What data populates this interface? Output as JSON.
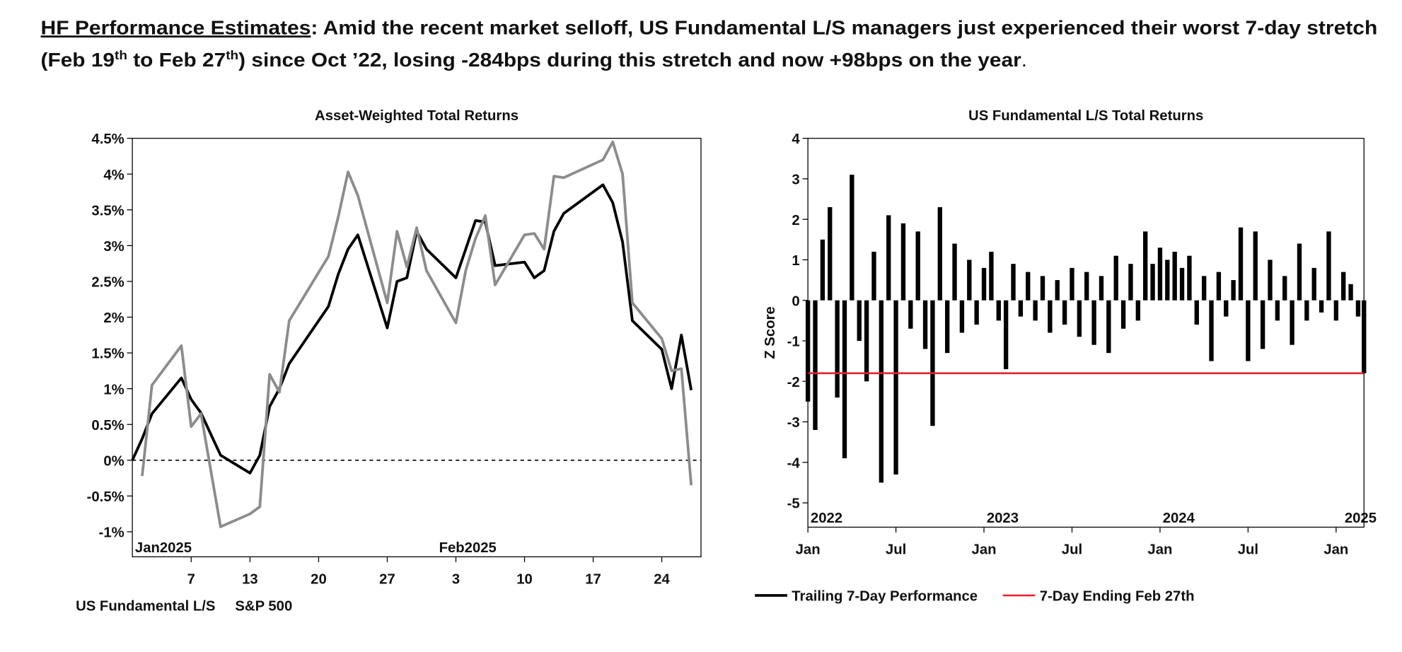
{
  "header": {
    "title": "HF Performance Estimates",
    "parts": [
      ": Amid the recent market selloff, US Fundamental L/S managers just experienced their worst 7-day stretch",
      "(Feb 19",
      "th",
      " to Feb 27",
      "th",
      ") since Oct ’22, losing -284bps during this stretch and now +98bps on the year",
      "."
    ]
  },
  "chart_data": [
    {
      "type": "line",
      "title": "Asset-Weighted Total Returns",
      "x": [
        1,
        2,
        3,
        6,
        7,
        8,
        10,
        13,
        14,
        15,
        16,
        17,
        21,
        22,
        23,
        24,
        27,
        28,
        29,
        30,
        31,
        34,
        35,
        36,
        37,
        38,
        41,
        42,
        43,
        44,
        45,
        49,
        50,
        51,
        52,
        55,
        56,
        57,
        58
      ],
      "series": [
        {
          "name": "US Fundamental L/S",
          "color": "#000000",
          "values": [
            0,
            0.3,
            0.65,
            1.15,
            0.85,
            0.66,
            0.07,
            -0.18,
            0.07,
            0.75,
            1.0,
            1.35,
            2.15,
            2.6,
            2.95,
            3.15,
            1.85,
            2.5,
            2.55,
            3.2,
            2.95,
            2.55,
            2.95,
            3.35,
            3.33,
            2.72,
            2.77,
            2.55,
            2.65,
            3.2,
            3.45,
            3.85,
            3.6,
            3.05,
            1.95,
            1.55,
            1.0,
            1.75,
            0.98
          ]
        },
        {
          "name": "S&P 500",
          "color": "#8c8c8c",
          "values": [
            null,
            -0.22,
            1.05,
            1.6,
            0.47,
            0.65,
            -0.93,
            -0.75,
            -0.65,
            1.2,
            0.95,
            1.95,
            2.85,
            3.4,
            4.03,
            3.7,
            2.2,
            3.2,
            2.7,
            3.25,
            2.65,
            1.92,
            2.65,
            3.1,
            3.42,
            2.45,
            3.15,
            3.17,
            2.95,
            3.97,
            3.95,
            4.2,
            4.45,
            4.0,
            2.2,
            1.7,
            1.25,
            1.28,
            -0.35
          ]
        }
      ],
      "xlim": [
        1,
        59
      ],
      "xticks": [
        7,
        13,
        20,
        27,
        {
          "value": 34,
          "label": "3"
        },
        {
          "value": 41,
          "label": "10"
        },
        {
          "value": 48,
          "label": "17"
        },
        {
          "value": 55,
          "label": "24"
        }
      ],
      "period_labels": [
        {
          "value": 1,
          "label": "Jan2025"
        },
        {
          "value": 32,
          "label": "Feb2025"
        }
      ],
      "ylim": [
        -1.35,
        4.5
      ],
      "yticks": [
        {
          "value": -1,
          "label": "-1%"
        },
        {
          "value": -0.5,
          "label": "-0.5%"
        },
        {
          "value": 0,
          "label": "0%"
        },
        {
          "value": 0.5,
          "label": "0.5%"
        },
        {
          "value": 1,
          "label": "1%"
        },
        {
          "value": 1.5,
          "label": "1.5%"
        },
        {
          "value": 2,
          "label": "2%"
        },
        {
          "value": 2.5,
          "label": "2.5%"
        },
        {
          "value": 3,
          "label": "3%"
        },
        {
          "value": 3.5,
          "label": "3.5%"
        },
        {
          "value": 4,
          "label": "4%"
        },
        {
          "value": 4.5,
          "label": "4.5%"
        }
      ],
      "reference_line": 0
    },
    {
      "type": "bar",
      "title": "US Fundamental L/S Total Returns",
      "y_label": "Z Score",
      "x": [
        0,
        0.5,
        1,
        1.5,
        2,
        2.5,
        3,
        3.5,
        4,
        4.5,
        5,
        5.5,
        6,
        6.5,
        7,
        7.5,
        8,
        8.5,
        9,
        9.5,
        10,
        10.5,
        11,
        11.5,
        12,
        12.5,
        13,
        13.5,
        14,
        14.5,
        15,
        15.5,
        16,
        16.5,
        17,
        17.5,
        18,
        18.5,
        19,
        19.5,
        20,
        20.5,
        21,
        21.5,
        22,
        22.5,
        23,
        23.5,
        24,
        24.5,
        25,
        25.5,
        26,
        26.5,
        27,
        27.5,
        28,
        28.5,
        29,
        29.5,
        30,
        30.5,
        31,
        31.5,
        32,
        32.5,
        33,
        33.5,
        34,
        34.5,
        35,
        35.5,
        36,
        36.5,
        37,
        37.5,
        37.9
      ],
      "series": [
        {
          "name": "Trailing 7-Day Performance",
          "color": "#000000",
          "values": [
            -2.5,
            -3.2,
            1.5,
            2.3,
            -2.4,
            -3.9,
            3.1,
            -1.0,
            -2.0,
            1.2,
            -4.5,
            2.1,
            -4.3,
            1.9,
            -0.7,
            1.7,
            -1.2,
            -3.1,
            2.3,
            -1.3,
            1.4,
            -0.8,
            1.0,
            -0.6,
            0.8,
            1.2,
            -0.5,
            -1.7,
            0.9,
            -0.4,
            0.7,
            -0.5,
            0.6,
            -0.8,
            0.5,
            -0.6,
            0.8,
            -0.9,
            0.7,
            -1.1,
            0.6,
            -1.3,
            1.1,
            -0.7,
            0.9,
            -0.5,
            1.7,
            0.9,
            1.3,
            1.0,
            1.2,
            0.8,
            1.1,
            -0.6,
            0.6,
            -1.5,
            0.7,
            -0.4,
            0.5,
            1.8,
            -1.5,
            1.7,
            -1.2,
            1.0,
            -0.5,
            0.6,
            -1.1,
            1.4,
            -0.5,
            0.8,
            -0.3,
            1.7,
            -0.5,
            0.7,
            0.4,
            -0.4,
            -1.8
          ]
        }
      ],
      "reference": {
        "name": "7-Day Ending Feb 27th",
        "color": "#e8202a",
        "value": -1.8
      },
      "xlim": [
        0,
        37.9
      ],
      "xticks": [
        {
          "value": 0,
          "label": "Jan"
        },
        {
          "value": 6,
          "label": "Jul"
        },
        {
          "value": 12,
          "label": "Jan"
        },
        {
          "value": 18,
          "label": "Jul"
        },
        {
          "value": 24,
          "label": "Jan"
        },
        {
          "value": 30,
          "label": "Jul"
        },
        {
          "value": 36,
          "label": "Jan"
        }
      ],
      "period_labels": [
        {
          "value": 0,
          "label": "2022"
        },
        {
          "value": 12,
          "label": "2023"
        },
        {
          "value": 24,
          "label": "2024"
        },
        {
          "value": 36,
          "label": "2025"
        }
      ],
      "ylim": [
        -5.6,
        4
      ],
      "yticks": [
        -5,
        -4,
        -3,
        -2,
        -1,
        0,
        1,
        2,
        3,
        4
      ]
    }
  ]
}
